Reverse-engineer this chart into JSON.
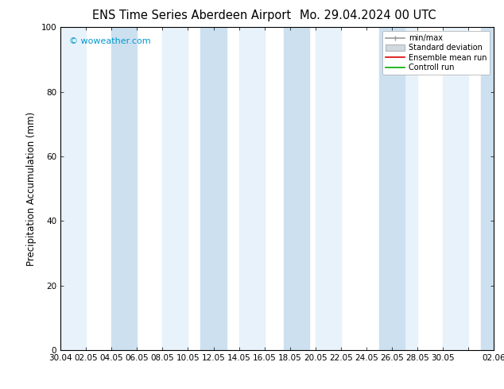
{
  "title": "ENS Time Series Aberdeen Airport",
  "title2": "Mo. 29.04.2024 00 UTC",
  "ylabel": "Precipitation Accumulation (mm)",
  "ylim": [
    0,
    100
  ],
  "background_color": "#ffffff",
  "plot_bg_color": "#ffffff",
  "watermark": "© woweather.com",
  "watermark_color": "#0099cc",
  "legend_labels": [
    "min/max",
    "Standard deviation",
    "Ensemble mean run",
    "Controll run"
  ],
  "shade_band_color": "#cce0f0",
  "alt_band_color": "#e8f2fa",
  "xtick_labels": [
    "30.04",
    "02.05",
    "04.05",
    "06.05",
    "08.05",
    "10.05",
    "12.05",
    "14.05",
    "16.05",
    "18.05",
    "20.05",
    "22.05",
    "24.05",
    "26.05",
    "28.05",
    "30.05",
    "",
    "02.06"
  ],
  "xtick_positions": [
    0,
    2,
    4,
    6,
    8,
    10,
    12,
    14,
    16,
    18,
    20,
    22,
    24,
    26,
    28,
    30,
    32,
    34
  ],
  "dark_shade_bands": [
    [
      4,
      6
    ],
    [
      11,
      13
    ],
    [
      17.5,
      19.5
    ],
    [
      25,
      27
    ],
    [
      33,
      35
    ]
  ],
  "light_shade_bands": [
    [
      0,
      2
    ],
    [
      8,
      10
    ],
    [
      14,
      16
    ],
    [
      20,
      22
    ],
    [
      26,
      28
    ],
    [
      30,
      32
    ]
  ],
  "xmin": 0,
  "xmax": 34,
  "title_fontsize": 10.5,
  "axis_fontsize": 8.5,
  "tick_fontsize": 7.5
}
